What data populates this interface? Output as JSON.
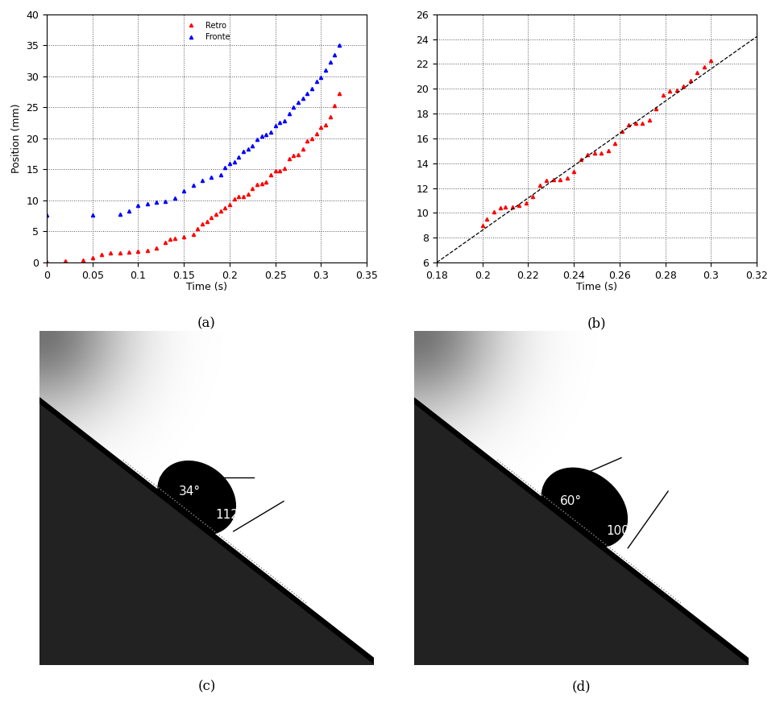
{
  "chart_data": [
    {
      "type": "scatter",
      "caption": "(a)",
      "x_label": "Time (s)",
      "y_label": "Position (mm)",
      "xlim": [
        0,
        0.35
      ],
      "xticks": [
        0,
        0.05,
        0.1,
        0.15,
        0.2,
        0.25,
        0.3,
        0.35
      ],
      "ylim": [
        0,
        40
      ],
      "yticks": [
        0,
        5,
        10,
        15,
        20,
        25,
        30,
        35,
        40
      ],
      "grid": true,
      "legend": "upper center",
      "series": [
        {
          "name": "Retro",
          "color": "#ff0000",
          "marker": "triangle",
          "x": [
            0,
            0.02,
            0.04,
            0.05,
            0.06,
            0.07,
            0.08,
            0.09,
            0.1,
            0.11,
            0.12,
            0.13,
            0.135,
            0.14,
            0.15,
            0.16,
            0.165,
            0.17,
            0.175,
            0.18,
            0.185,
            0.19,
            0.195,
            0.2,
            0.205,
            0.21,
            0.215,
            0.22,
            0.225,
            0.23,
            0.235,
            0.24,
            0.245,
            0.25,
            0.255,
            0.26,
            0.265,
            0.27,
            0.275,
            0.28,
            0.285,
            0.29,
            0.295,
            0.3,
            0.305,
            0.31,
            0.315,
            0.32
          ],
          "values": [
            0.1,
            0.2,
            0.4,
            0.8,
            1.3,
            1.5,
            1.6,
            1.7,
            1.8,
            2.0,
            2.3,
            3.2,
            3.8,
            3.9,
            4.1,
            4.6,
            5.4,
            6.2,
            6.6,
            7.3,
            7.8,
            8.3,
            8.8,
            9.3,
            10.3,
            10.6,
            10.6,
            11.0,
            12.0,
            12.6,
            12.7,
            13.0,
            14.2,
            14.8,
            14.8,
            15.2,
            16.8,
            17.2,
            17.4,
            18.3,
            19.6,
            20.0,
            20.8,
            21.8,
            22.2,
            23.5,
            25.3,
            27.2
          ]
        },
        {
          "name": "Fronte",
          "color": "#0000ff",
          "marker": "triangle",
          "x": [
            0,
            0.05,
            0.08,
            0.09,
            0.1,
            0.11,
            0.12,
            0.13,
            0.14,
            0.15,
            0.16,
            0.17,
            0.18,
            0.19,
            0.195,
            0.2,
            0.205,
            0.21,
            0.215,
            0.22,
            0.225,
            0.23,
            0.235,
            0.24,
            0.245,
            0.25,
            0.255,
            0.26,
            0.265,
            0.27,
            0.275,
            0.28,
            0.285,
            0.29,
            0.295,
            0.3,
            0.305,
            0.31,
            0.315,
            0.32
          ],
          "values": [
            7.6,
            7.7,
            7.8,
            8.3,
            9.2,
            9.5,
            9.7,
            9.9,
            10.4,
            11.5,
            12.4,
            13.3,
            13.7,
            14.2,
            15.3,
            16.0,
            16.2,
            17.0,
            17.9,
            18.3,
            18.8,
            19.8,
            20.4,
            20.6,
            21.0,
            22.0,
            22.6,
            22.9,
            24.0,
            25.0,
            25.8,
            26.5,
            27.3,
            28.1,
            29.2,
            29.8,
            31.0,
            32.3,
            33.5,
            35.0
          ]
        }
      ]
    },
    {
      "type": "scatter",
      "caption": "(b)",
      "x_label": "Time (s)",
      "xlim": [
        0.18,
        0.32
      ],
      "xticks": [
        0.18,
        0.2,
        0.22,
        0.24,
        0.26,
        0.28,
        0.3,
        0.32
      ],
      "ylim": [
        6,
        26
      ],
      "yticks": [
        6,
        8,
        10,
        12,
        14,
        16,
        18,
        20,
        22,
        24,
        26
      ],
      "grid": true,
      "series": [
        {
          "color": "#ff0000",
          "marker": "triangle",
          "x": [
            0.2,
            0.202,
            0.205,
            0.208,
            0.21,
            0.213,
            0.216,
            0.219,
            0.222,
            0.225,
            0.228,
            0.231,
            0.234,
            0.237,
            0.24,
            0.243,
            0.246,
            0.249,
            0.252,
            0.255,
            0.258,
            0.261,
            0.264,
            0.267,
            0.27,
            0.273,
            0.276,
            0.279,
            0.282,
            0.285,
            0.288,
            0.291,
            0.294,
            0.297,
            0.3
          ],
          "values": [
            9.0,
            9.5,
            10.1,
            10.4,
            10.5,
            10.5,
            10.6,
            10.8,
            11.3,
            12.2,
            12.6,
            12.7,
            12.7,
            12.8,
            13.3,
            14.3,
            14.7,
            14.8,
            14.8,
            15.0,
            15.6,
            16.6,
            17.1,
            17.2,
            17.2,
            17.5,
            18.4,
            19.5,
            19.8,
            19.9,
            20.2,
            20.7,
            21.3,
            21.8,
            22.3
          ]
        },
        {
          "type": "line",
          "color": "#000000",
          "line_style": "dashed",
          "x": [
            0.18,
            0.32
          ],
          "values": [
            6,
            24.2
          ]
        }
      ]
    }
  ],
  "images": [
    {
      "caption": "(c)",
      "angles": [
        "34°",
        "112°"
      ]
    },
    {
      "caption": "(d)",
      "angles": [
        "60°",
        "100°"
      ]
    }
  ]
}
